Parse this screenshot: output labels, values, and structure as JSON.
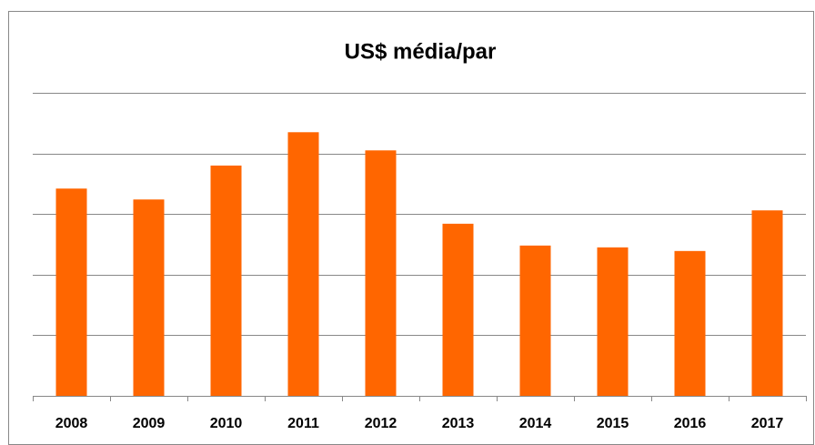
{
  "chart_data": {
    "type": "bar",
    "title": "US$ média/par",
    "categories": [
      "2008",
      "2009",
      "2010",
      "2011",
      "2012",
      "2013",
      "2014",
      "2015",
      "2016",
      "2017"
    ],
    "values": [
      3.42,
      3.24,
      3.8,
      4.35,
      4.05,
      2.84,
      2.48,
      2.45,
      2.39,
      3.06
    ],
    "color": "#ff6600",
    "ylim": [
      0,
      5
    ],
    "yticks": [
      0,
      1,
      2,
      3,
      4,
      5
    ],
    "grid": true
  }
}
